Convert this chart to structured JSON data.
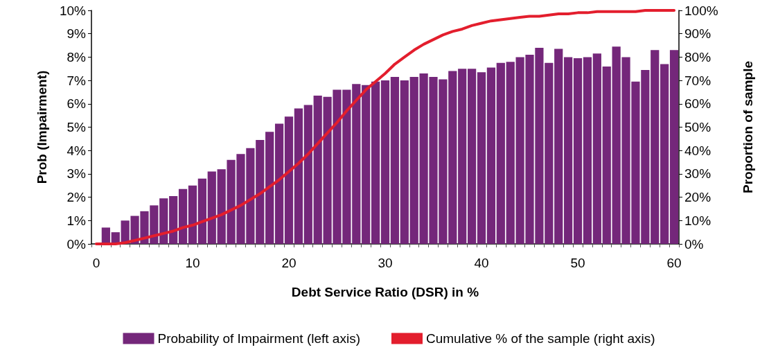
{
  "chart_data": {
    "type": "bar",
    "xlabel": "Debt Service Ratio (DSR) in %",
    "ylabel": "Prob (Impairment)",
    "y2label": "Proportion of sample",
    "categories": [
      "0",
      null,
      null,
      null,
      null,
      null,
      null,
      null,
      null,
      null,
      "10",
      null,
      null,
      null,
      null,
      null,
      null,
      null,
      null,
      null,
      "20",
      null,
      null,
      null,
      null,
      null,
      null,
      null,
      null,
      null,
      "30",
      null,
      null,
      null,
      null,
      null,
      null,
      null,
      null,
      null,
      "40",
      null,
      null,
      null,
      null,
      null,
      null,
      null,
      null,
      null,
      "50",
      null,
      null,
      null,
      null,
      null,
      null,
      null,
      null,
      null,
      "60"
    ],
    "series": [
      {
        "name": "Probability of Impairment (left axis)",
        "color": "#74277a",
        "values": [
          null,
          0.7,
          0.5,
          1.0,
          1.2,
          1.4,
          1.65,
          1.95,
          2.05,
          2.35,
          2.5,
          2.8,
          3.1,
          3.2,
          3.6,
          3.85,
          4.1,
          4.45,
          4.8,
          5.15,
          5.45,
          5.8,
          5.95,
          6.35,
          6.3,
          6.6,
          6.6,
          6.85,
          6.8,
          6.95,
          7.0,
          7.15,
          7.0,
          7.15,
          7.3,
          7.15,
          7.05,
          7.4,
          7.5,
          7.5,
          7.35,
          7.55,
          7.75,
          7.8,
          8.0,
          8.1,
          8.4,
          7.75,
          8.35,
          8.0,
          7.95,
          8.0,
          8.15,
          7.6,
          8.45,
          8.0,
          6.95,
          7.45,
          8.3,
          7.7,
          8.3
        ]
      },
      {
        "name": "Cumulative % of the sample (right axis)",
        "type": "line",
        "axis": "y2",
        "color": "#e31e2d",
        "values": [
          0,
          0,
          0,
          0.5,
          1.5,
          2.5,
          3.5,
          4.5,
          5.5,
          7,
          8,
          9.5,
          11,
          12.5,
          14.5,
          16.5,
          19,
          21.5,
          24.5,
          27.5,
          31,
          34.5,
          38.5,
          43,
          47.5,
          52,
          57,
          61.5,
          66,
          69.5,
          73,
          77,
          80,
          83,
          85.5,
          87.5,
          89.5,
          91,
          92,
          93.5,
          94.5,
          95.5,
          96,
          96.5,
          97,
          97.5,
          97.5,
          98,
          98.5,
          98.5,
          99,
          99,
          99.5,
          99.5,
          99.5,
          99.5,
          99.5,
          100,
          100,
          100,
          100
        ]
      }
    ],
    "ylim": [
      0,
      10
    ],
    "yticks": [
      {
        "value": 0,
        "label": "0%"
      },
      {
        "value": 1,
        "label": "1%"
      },
      {
        "value": 2,
        "label": "2%"
      },
      {
        "value": 3,
        "label": "3%"
      },
      {
        "value": 4,
        "label": "4%"
      },
      {
        "value": 5,
        "label": "5%"
      },
      {
        "value": 6,
        "label": "6%"
      },
      {
        "value": 7,
        "label": "7%"
      },
      {
        "value": 8,
        "label": "8%"
      },
      {
        "value": 9,
        "label": "9%"
      },
      {
        "value": 10,
        "label": "10%"
      }
    ],
    "y2lim": [
      0,
      100
    ],
    "y2ticks": [
      {
        "value": 0,
        "label": "0%"
      },
      {
        "value": 10,
        "label": "10%"
      },
      {
        "value": 20,
        "label": "20%"
      },
      {
        "value": 30,
        "label": "30%"
      },
      {
        "value": 40,
        "label": "40%"
      },
      {
        "value": 50,
        "label": "50%"
      },
      {
        "value": 60,
        "label": "60%"
      },
      {
        "value": 70,
        "label": "70%"
      },
      {
        "value": 80,
        "label": "80%"
      },
      {
        "value": 90,
        "label": "90%"
      },
      {
        "value": 100,
        "label": "100%"
      }
    ],
    "legend": "bottom",
    "marker": "none",
    "line_style": "solid",
    "grid": false
  }
}
